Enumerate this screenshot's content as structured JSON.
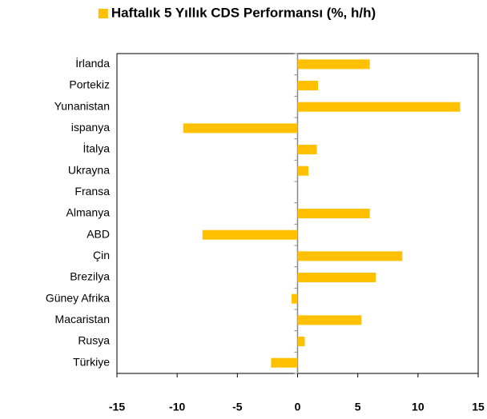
{
  "chart_data": {
    "type": "bar",
    "orientation": "horizontal",
    "categories": [
      "İrlanda",
      "Portekiz",
      "Yunanistan",
      "ispanya",
      "İtalya",
      "Ukrayna",
      "Fransa",
      "Almanya",
      "ABD",
      "Çin",
      "Brezilya",
      "Güney Afrika",
      "Macaristan",
      "Rusya",
      "Türkiye"
    ],
    "series": [
      {
        "name": "Haftalık 5 Yıllık CDS Performansı (%, h/h)",
        "color": "#ffc000",
        "values": [
          6.0,
          1.7,
          13.5,
          -9.5,
          1.6,
          0.9,
          0,
          6.0,
          -7.9,
          8.7,
          6.5,
          -0.5,
          5.3,
          0.6,
          -2.2
        ]
      }
    ],
    "xlim": [
      -15,
      15
    ],
    "xticks": [
      -15,
      -10,
      -5,
      0,
      5,
      10,
      15
    ],
    "legend": "top"
  }
}
